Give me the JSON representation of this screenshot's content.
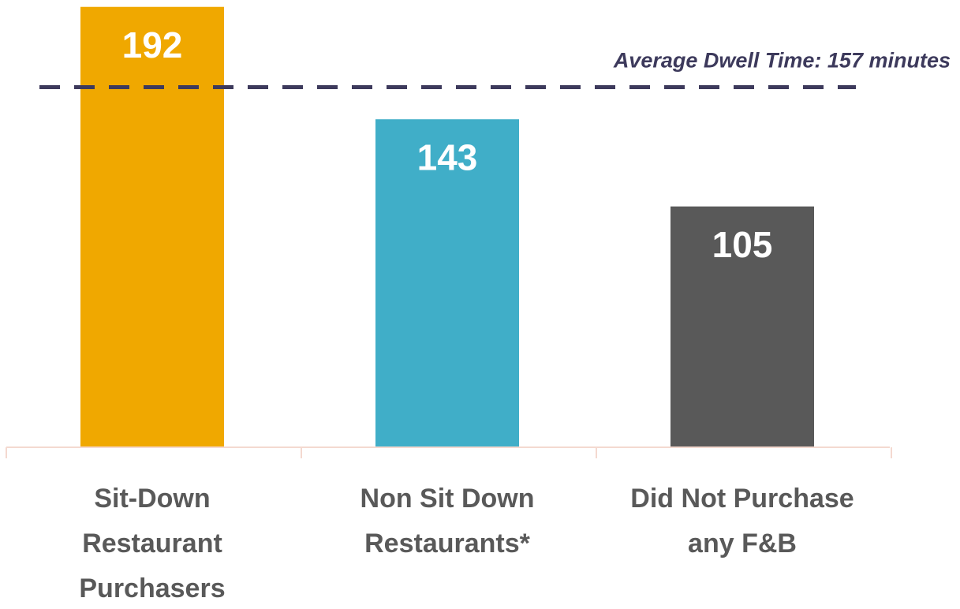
{
  "chart_data": {
    "type": "bar",
    "categories": [
      "Sit-Down Restaurant Purchasers",
      "Non Sit Down Restaurants*",
      "Did Not Purchase any F&B"
    ],
    "values": [
      192,
      143,
      105
    ],
    "colors": [
      "#f0a800",
      "#40aec8",
      "#595959"
    ],
    "ylim": [
      0,
      195
    ],
    "reference_line": {
      "value": 157,
      "label": "Average Dwell Time: 157 minutes",
      "color": "#3d3a5c"
    }
  }
}
